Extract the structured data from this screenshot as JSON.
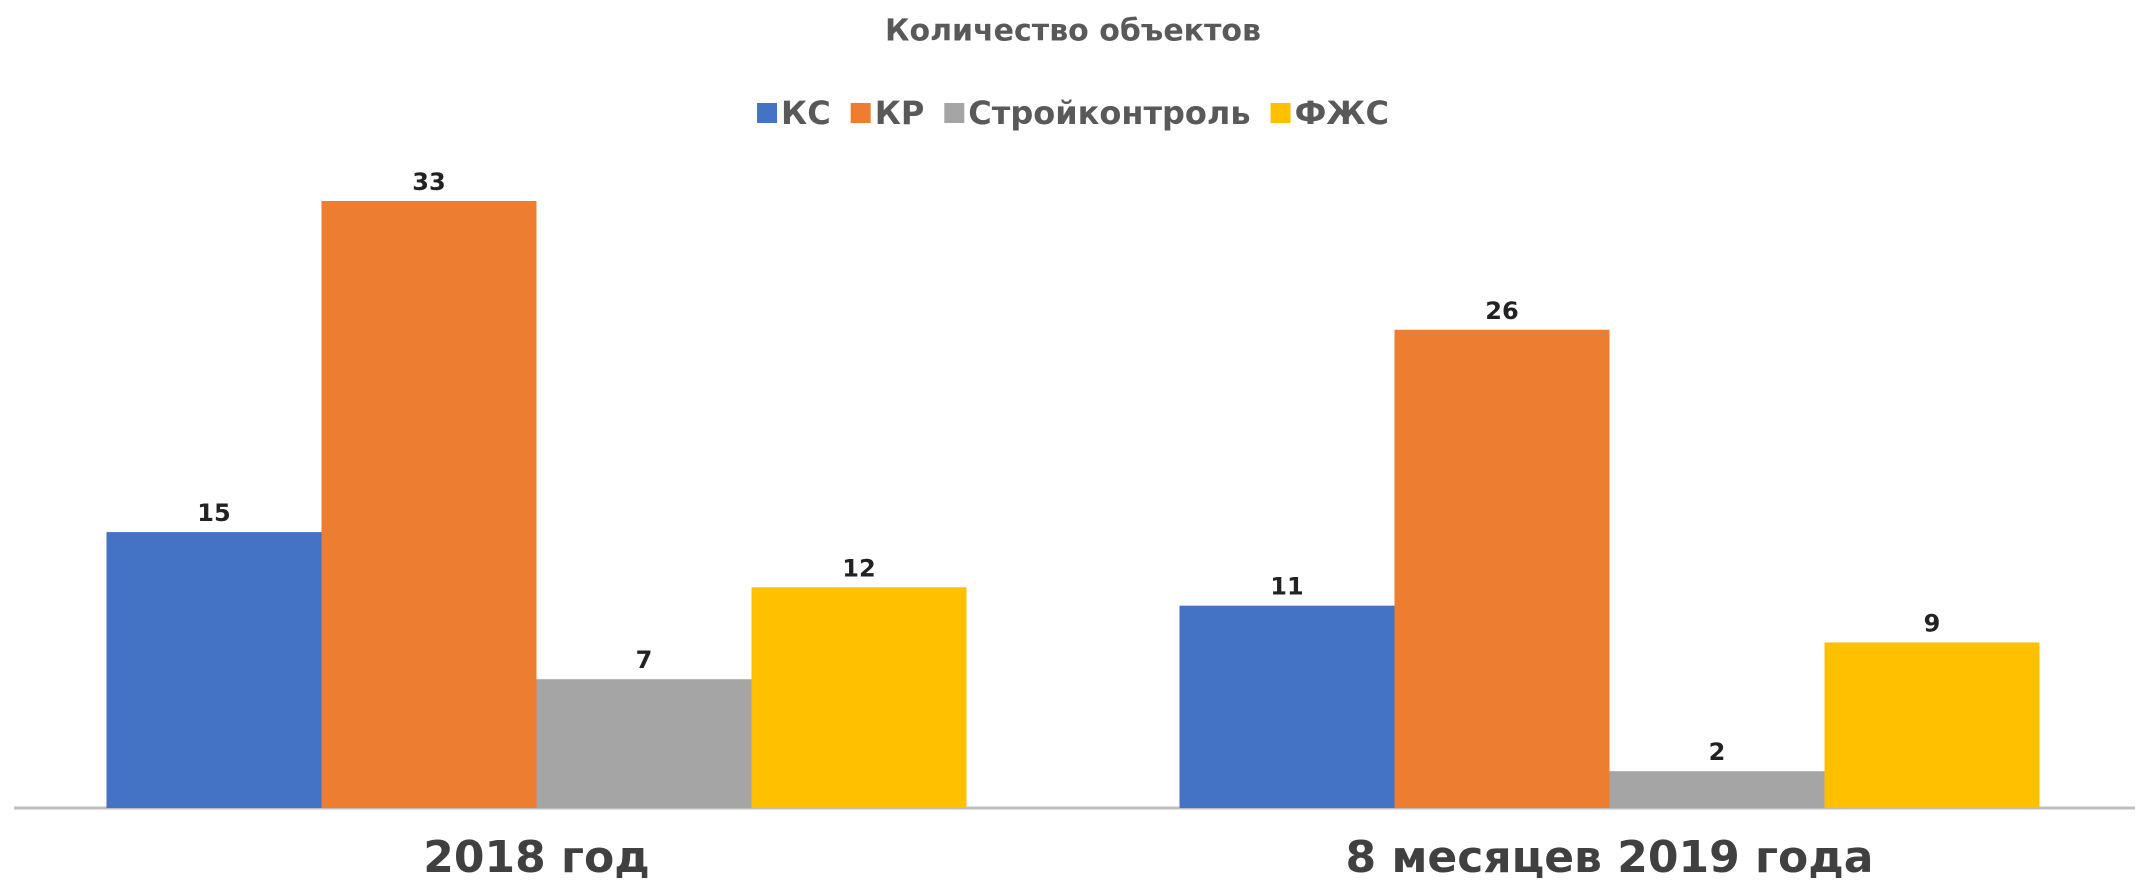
{
  "chart_data": {
    "type": "bar",
    "title": "Количество объектов",
    "categories": [
      "2018 год",
      "8 месяцев 2019 года"
    ],
    "series": [
      {
        "name": "КС",
        "color": "#4472c4",
        "values": [
          15,
          11
        ]
      },
      {
        "name": "КР",
        "color": "#ed7d31",
        "values": [
          33,
          26
        ]
      },
      {
        "name": "Стройконтроль",
        "color": "#a5a5a5",
        "values": [
          7,
          2
        ]
      },
      {
        "name": "ФЖС",
        "color": "#ffc000",
        "values": [
          12,
          9
        ]
      }
    ],
    "legend": "top"
  }
}
